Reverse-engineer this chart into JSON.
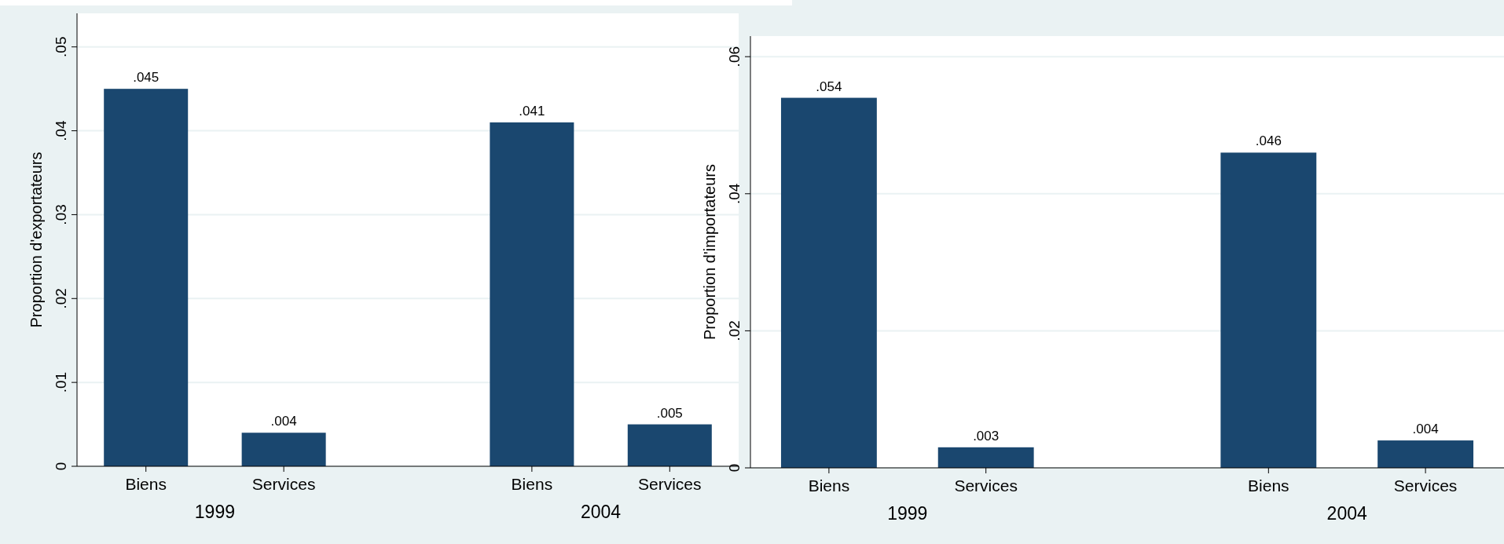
{
  "chart_data": [
    {
      "type": "bar",
      "ylabel": "Proportion d'exportateurs",
      "categories": [
        "Biens",
        "Services",
        "Biens",
        "Services"
      ],
      "values": [
        0.045,
        0.004,
        0.041,
        0.005
      ],
      "value_labels": [
        ".045",
        ".004",
        ".041",
        ".005"
      ],
      "color": "#1a476f",
      "ylim": [
        0,
        0.054
      ],
      "yticks": [
        {
          "value": 0,
          "label": "0"
        },
        {
          "value": 0.01,
          "label": ".01"
        },
        {
          "value": 0.02,
          "label": ".02"
        },
        {
          "value": 0.03,
          "label": ".03"
        },
        {
          "value": 0.04,
          "label": ".04"
        },
        {
          "value": 0.05,
          "label": ".05"
        }
      ],
      "grid": "y",
      "annotations": [
        "1999",
        "2004"
      ]
    },
    {
      "type": "bar",
      "ylabel": "Proportion d'importateurs",
      "categories": [
        "Biens",
        "Services",
        "Biens",
        "Services"
      ],
      "values": [
        0.054,
        0.003,
        0.046,
        0.004
      ],
      "value_labels": [
        ".054",
        ".003",
        ".046",
        ".004"
      ],
      "color": "#1a476f",
      "ylim": [
        0,
        0.063
      ],
      "yticks": [
        {
          "value": 0,
          "label": "0"
        },
        {
          "value": 0.02,
          "label": ".02"
        },
        {
          "value": 0.04,
          "label": ".04"
        },
        {
          "value": 0.06,
          "label": ".06"
        }
      ],
      "grid": "y",
      "annotations": [
        "1999",
        "2004"
      ]
    }
  ]
}
